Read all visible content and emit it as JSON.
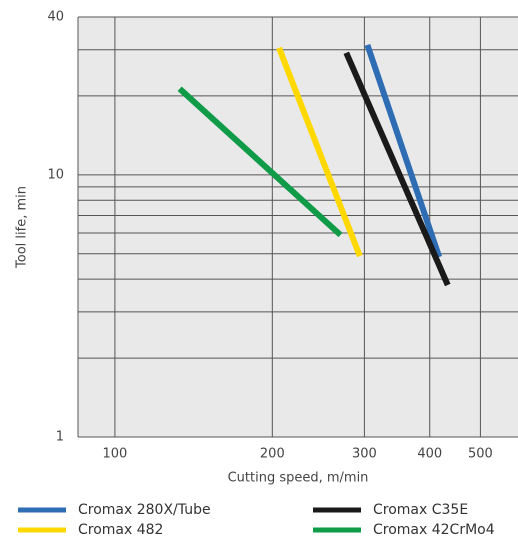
{
  "chart_data": {
    "type": "line",
    "x_label": "Cutting speed, m/min",
    "y_label": "Tool life, min",
    "log_x": true,
    "log_y": true,
    "grid": true,
    "xlim": [
      85,
      590
    ],
    "xticks": [
      100,
      200,
      300,
      400,
      500
    ],
    "ylim": [
      1,
      40
    ],
    "yticks": [
      1,
      10,
      40
    ],
    "yminor": [
      2,
      3,
      4,
      5,
      6,
      7,
      8,
      9,
      20,
      30
    ],
    "series": [
      {
        "name": "Cromax 280X/Tube",
        "color": "#2e6db4",
        "x": [
          304,
          417
        ],
        "values": [
          31.3,
          4.86
        ]
      },
      {
        "name": "Cromax C35E",
        "color": "#1a1a1a",
        "x": [
          277,
          433
        ],
        "values": [
          29.2,
          3.8
        ]
      },
      {
        "name": "Cromax 482",
        "color": "#ffd800",
        "x": [
          206,
          294
        ],
        "values": [
          30.5,
          4.9
        ]
      },
      {
        "name": "Cromax 42CrMo4",
        "color": "#0f9b48",
        "x": [
          133,
          270
        ],
        "values": [
          21.3,
          5.9
        ]
      }
    ]
  }
}
